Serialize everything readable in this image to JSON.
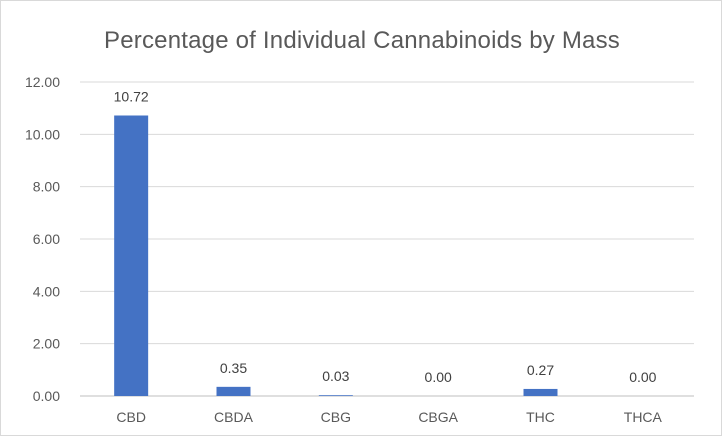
{
  "chart_data": {
    "type": "bar",
    "title": "Percentage of Individual Cannabinoids by Mass",
    "xlabel": "",
    "ylabel": "",
    "categories": [
      "CBD",
      "CBDA",
      "CBG",
      "CBGA",
      "THC",
      "THCA"
    ],
    "values": [
      10.72,
      0.35,
      0.03,
      0.0,
      0.27,
      0.0
    ],
    "data_labels": [
      "10.72",
      "0.35",
      "0.03",
      "0.00",
      "0.27",
      "0.00"
    ],
    "ylim": [
      0,
      12
    ],
    "yticks": [
      "0.00",
      "2.00",
      "4.00",
      "6.00",
      "8.00",
      "10.00",
      "12.00"
    ],
    "grid": true,
    "legend": "none",
    "bar_color": "#4472c4"
  }
}
